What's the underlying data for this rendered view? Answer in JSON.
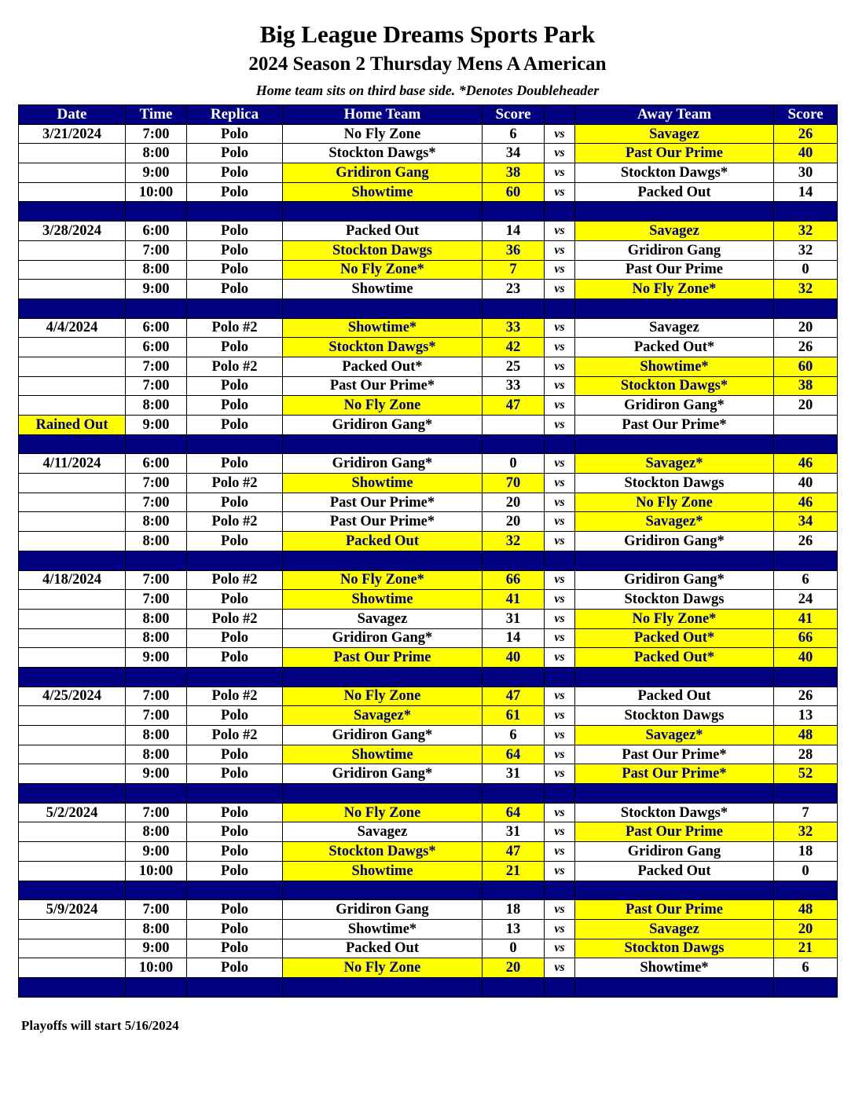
{
  "title": "Big League Dreams Sports Park",
  "subtitle": "2024 Season 2 Thursday Mens A American",
  "note": "Home team sits on third base side.  *Denotes Doubleheader",
  "colors": {
    "header": "#000080",
    "winner": "#ffff00"
  },
  "columns": [
    "Date",
    "Time",
    "Replica",
    "Home Team",
    "Score",
    "",
    "Away Team",
    "Score"
  ],
  "vs_label": "vs",
  "groups": [
    {
      "date": "3/21/2024",
      "games": [
        {
          "time": "7:00",
          "field": "Polo",
          "home": "No Fly Zone",
          "home_score": "6",
          "away": "Savagez",
          "away_score": "26",
          "winner": "away"
        },
        {
          "time": "8:00",
          "field": "Polo",
          "home": "Stockton Dawgs*",
          "home_score": "34",
          "away": "Past Our Prime",
          "away_score": "40",
          "winner": "away"
        },
        {
          "time": "9:00",
          "field": "Polo",
          "home": "Gridiron Gang",
          "home_score": "38",
          "away": "Stockton Dawgs*",
          "away_score": "30",
          "winner": "home"
        },
        {
          "time": "10:00",
          "field": "Polo",
          "home": "Showtime",
          "home_score": "60",
          "away": "Packed Out",
          "away_score": "14",
          "winner": "home"
        }
      ]
    },
    {
      "date": "3/28/2024",
      "games": [
        {
          "time": "6:00",
          "field": "Polo",
          "home": "Packed Out",
          "home_score": "14",
          "away": "Savagez",
          "away_score": "32",
          "winner": "away"
        },
        {
          "time": "7:00",
          "field": "Polo",
          "home": "Stockton Dawgs",
          "home_score": "36",
          "away": "Gridiron Gang",
          "away_score": "32",
          "winner": "home"
        },
        {
          "time": "8:00",
          "field": "Polo",
          "home": "No Fly Zone*",
          "home_score": "7",
          "away": "Past Our Prime",
          "away_score": "0",
          "winner": "home"
        },
        {
          "time": "9:00",
          "field": "Polo",
          "home": "Showtime",
          "home_score": "23",
          "away": "No Fly Zone*",
          "away_score": "32",
          "winner": "away"
        }
      ]
    },
    {
      "date": "4/4/2024",
      "games": [
        {
          "time": "6:00",
          "field": "Polo #2",
          "home": "Showtime*",
          "home_score": "33",
          "away": "Savagez",
          "away_score": "20",
          "winner": "home"
        },
        {
          "time": "6:00",
          "field": "Polo",
          "home": "Stockton Dawgs*",
          "home_score": "42",
          "away": "Packed Out*",
          "away_score": "26",
          "winner": "home"
        },
        {
          "time": "7:00",
          "field": "Polo #2",
          "home": "Packed Out*",
          "home_score": "25",
          "away": "Showtime*",
          "away_score": "60",
          "winner": "away"
        },
        {
          "time": "7:00",
          "field": "Polo",
          "home": "Past Our Prime*",
          "home_score": "33",
          "away": "Stockton Dawgs*",
          "away_score": "38",
          "winner": "away"
        },
        {
          "time": "8:00",
          "field": "Polo",
          "home": "No Fly Zone",
          "home_score": "47",
          "away": "Gridiron Gang*",
          "away_score": "20",
          "winner": "home"
        },
        {
          "status": "Rained Out",
          "time": "9:00",
          "field": "Polo",
          "home": "Gridiron Gang*",
          "home_score": "",
          "away": "Past Our Prime*",
          "away_score": "",
          "winner": ""
        }
      ]
    },
    {
      "date": "4/11/2024",
      "games": [
        {
          "time": "6:00",
          "field": "Polo",
          "home": "Gridiron Gang*",
          "home_score": "0",
          "away": "Savagez*",
          "away_score": "46",
          "winner": "away"
        },
        {
          "time": "7:00",
          "field": "Polo #2",
          "home": "Showtime",
          "home_score": "70",
          "away": "Stockton Dawgs",
          "away_score": "40",
          "winner": "home"
        },
        {
          "time": "7:00",
          "field": "Polo",
          "home": "Past Our Prime*",
          "home_score": "20",
          "away": "No Fly Zone",
          "away_score": "46",
          "winner": "away"
        },
        {
          "time": "8:00",
          "field": "Polo #2",
          "home": "Past Our Prime*",
          "home_score": "20",
          "away": "Savagez*",
          "away_score": "34",
          "winner": "away"
        },
        {
          "time": "8:00",
          "field": "Polo",
          "home": "Packed Out",
          "home_score": "32",
          "away": "Gridiron Gang*",
          "away_score": "26",
          "winner": "home"
        }
      ]
    },
    {
      "date": "4/18/2024",
      "games": [
        {
          "time": "7:00",
          "field": "Polo #2",
          "home": "No Fly Zone*",
          "home_score": "66",
          "away": "Gridiron Gang*",
          "away_score": "6",
          "winner": "home"
        },
        {
          "time": "7:00",
          "field": "Polo",
          "home": "Showtime",
          "home_score": "41",
          "away": "Stockton Dawgs",
          "away_score": "24",
          "winner": "home"
        },
        {
          "time": "8:00",
          "field": "Polo #2",
          "home": "Savagez",
          "home_score": "31",
          "away": "No Fly Zone*",
          "away_score": "41",
          "winner": "away"
        },
        {
          "time": "8:00",
          "field": "Polo",
          "home": "Gridiron Gang*",
          "home_score": "14",
          "away": "Packed Out*",
          "away_score": "66",
          "winner": "away"
        },
        {
          "time": "9:00",
          "field": "Polo",
          "home": "Past Our Prime",
          "home_score": "40",
          "away": "Packed Out*",
          "away_score": "40",
          "winner": "both"
        }
      ]
    },
    {
      "date": "4/25/2024",
      "games": [
        {
          "time": "7:00",
          "field": "Polo #2",
          "home": "No Fly Zone",
          "home_score": "47",
          "away": "Packed Out",
          "away_score": "26",
          "winner": "home"
        },
        {
          "time": "7:00",
          "field": "Polo",
          "home": "Savagez*",
          "home_score": "61",
          "away": "Stockton Dawgs",
          "away_score": "13",
          "winner": "home"
        },
        {
          "time": "8:00",
          "field": "Polo #2",
          "home": "Gridiron Gang*",
          "home_score": "6",
          "away": "Savagez*",
          "away_score": "48",
          "winner": "away"
        },
        {
          "time": "8:00",
          "field": "Polo",
          "home": "Showtime",
          "home_score": "64",
          "away": "Past Our Prime*",
          "away_score": "28",
          "winner": "home"
        },
        {
          "time": "9:00",
          "field": "Polo",
          "home": "Gridiron Gang*",
          "home_score": "31",
          "away": "Past Our Prime*",
          "away_score": "52",
          "winner": "away"
        }
      ]
    },
    {
      "date": "5/2/2024",
      "games": [
        {
          "time": "7:00",
          "field": "Polo",
          "home": "No Fly Zone",
          "home_score": "64",
          "away": "Stockton Dawgs*",
          "away_score": "7",
          "winner": "home"
        },
        {
          "time": "8:00",
          "field": "Polo",
          "home": "Savagez",
          "home_score": "31",
          "away": "Past Our Prime",
          "away_score": "32",
          "winner": "away"
        },
        {
          "time": "9:00",
          "field": "Polo",
          "home": "Stockton Dawgs*",
          "home_score": "47",
          "away": "Gridiron Gang",
          "away_score": "18",
          "winner": "home"
        },
        {
          "time": "10:00",
          "field": "Polo",
          "home": "Showtime",
          "home_score": "21",
          "away": "Packed Out",
          "away_score": "0",
          "winner": "home"
        }
      ]
    },
    {
      "date": "5/9/2024",
      "games": [
        {
          "time": "7:00",
          "field": "Polo",
          "home": "Gridiron Gang",
          "home_score": "18",
          "away": "Past Our Prime",
          "away_score": "48",
          "winner": "away"
        },
        {
          "time": "8:00",
          "field": "Polo",
          "home": "Showtime*",
          "home_score": "13",
          "away": "Savagez",
          "away_score": "20",
          "winner": "away"
        },
        {
          "time": "9:00",
          "field": "Polo",
          "home": "Packed Out",
          "home_score": "0",
          "away": "Stockton Dawgs",
          "away_score": "21",
          "winner": "away"
        },
        {
          "time": "10:00",
          "field": "Polo",
          "home": "No Fly Zone",
          "home_score": "20",
          "away": "Showtime*",
          "away_score": "6",
          "winner": "home"
        }
      ]
    }
  ],
  "footer": "Playoffs will start 5/16/2024"
}
